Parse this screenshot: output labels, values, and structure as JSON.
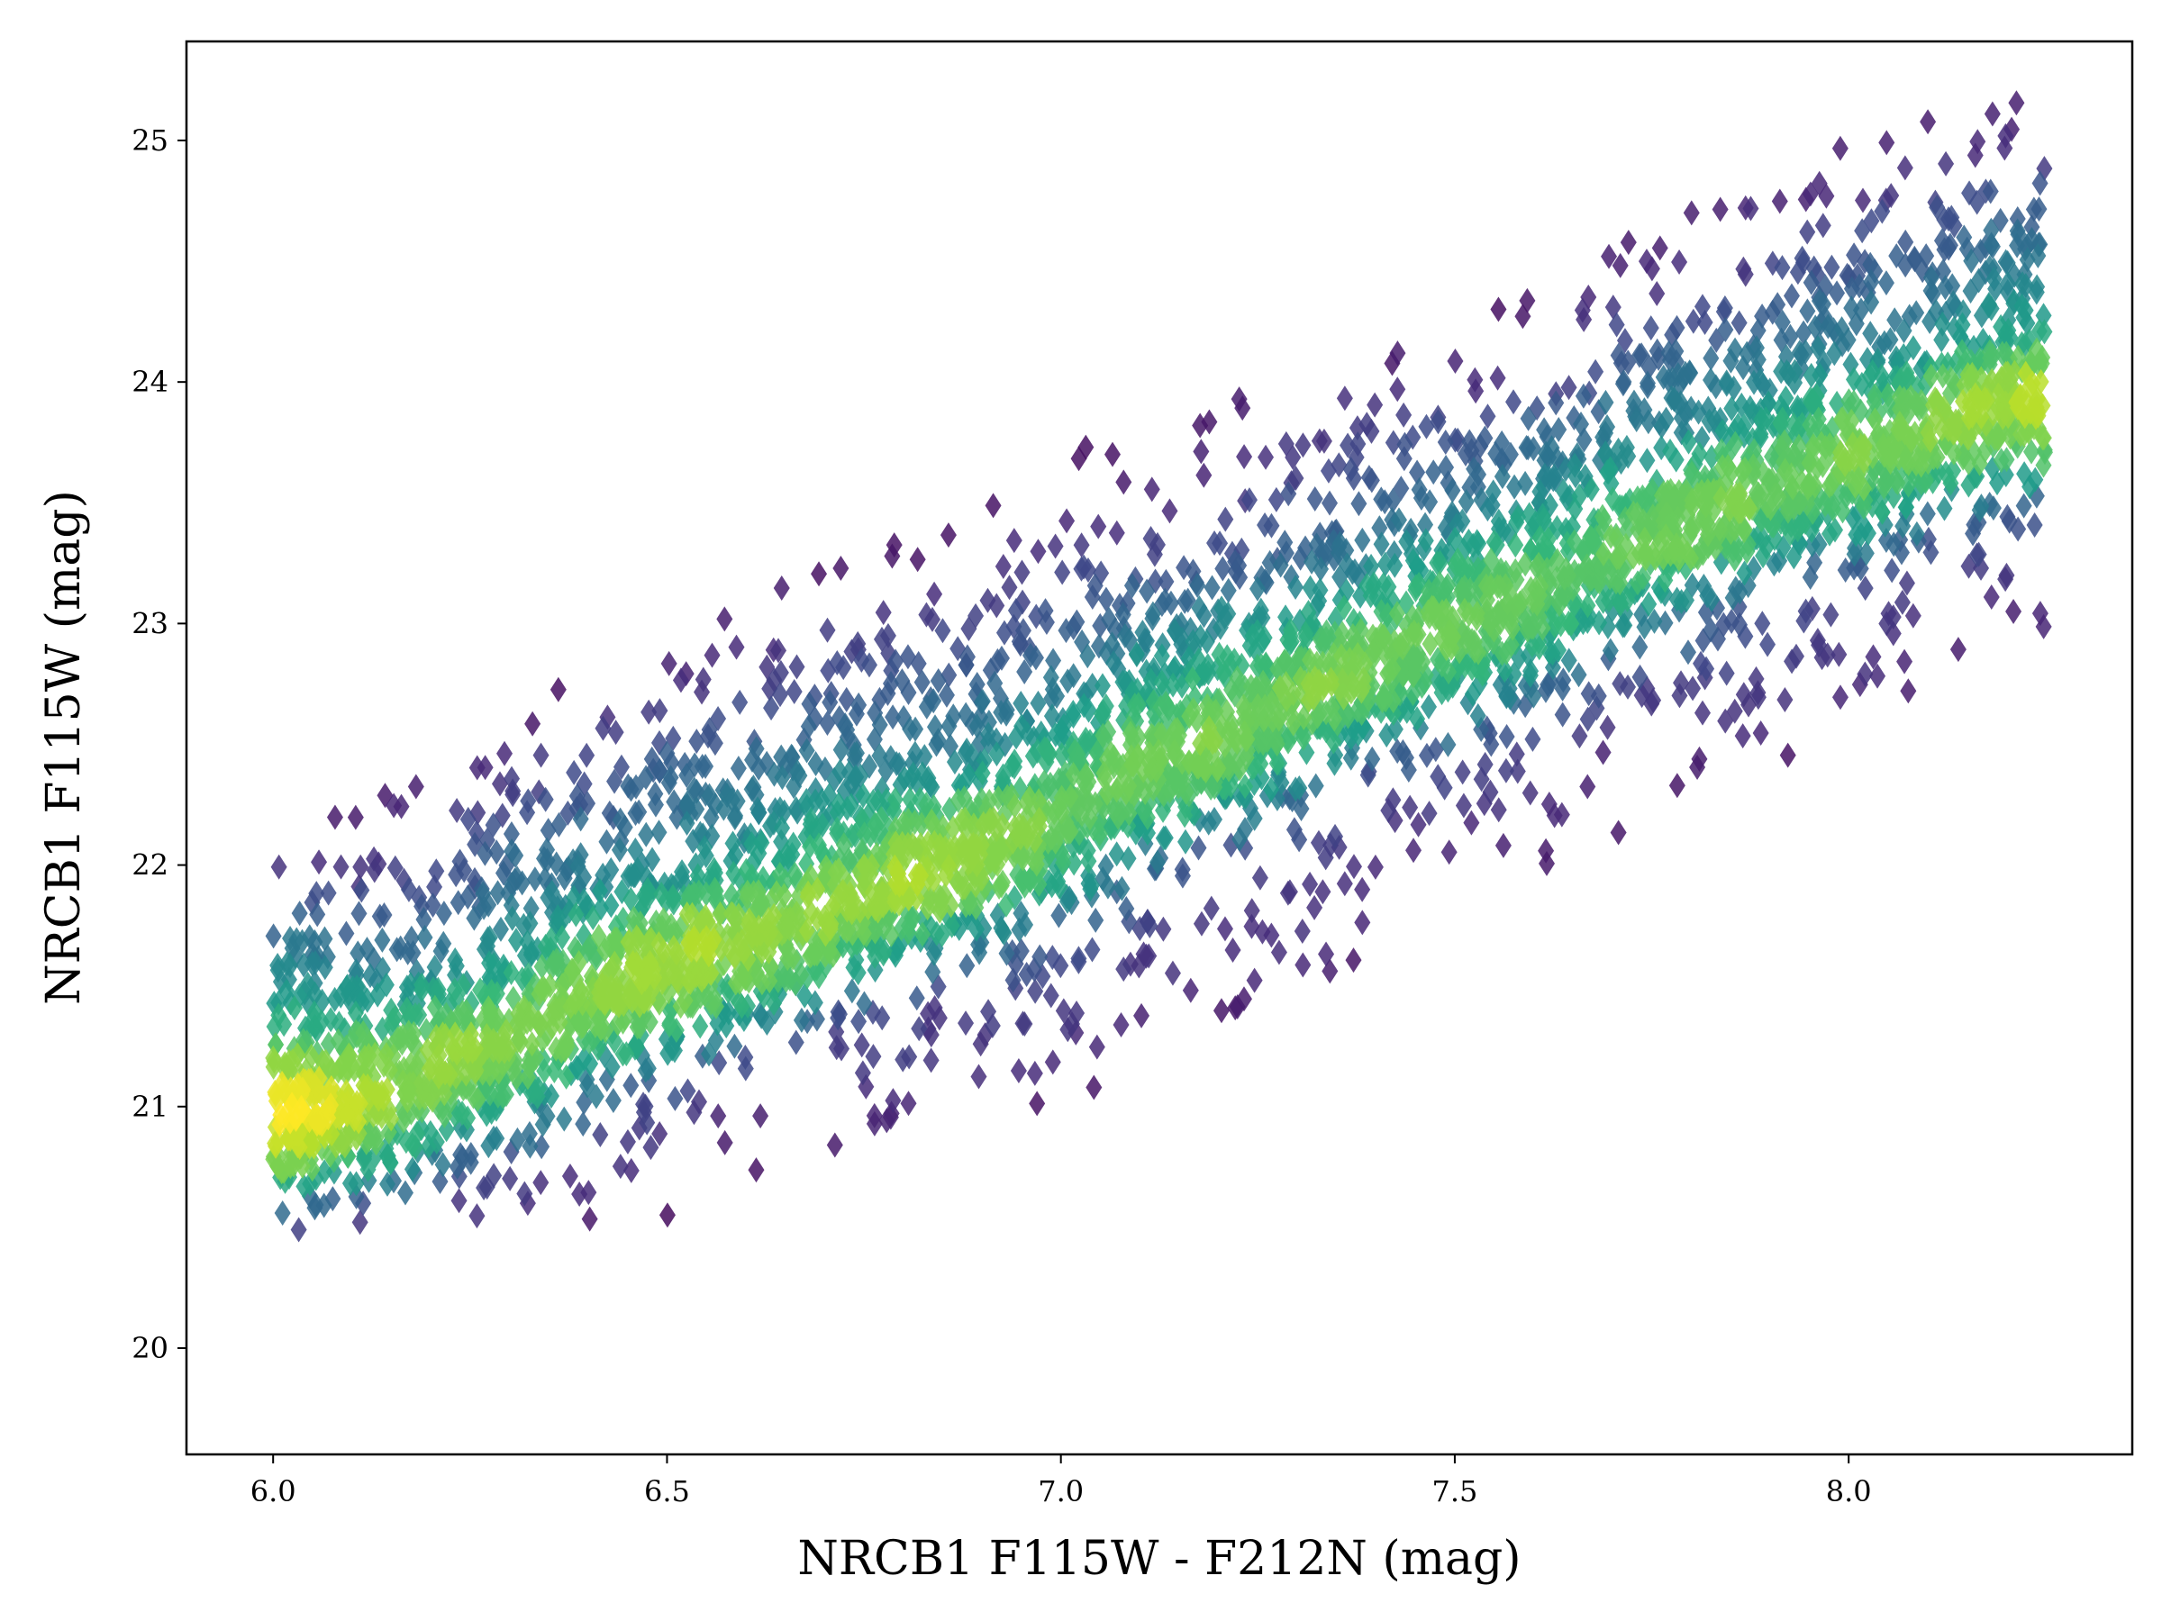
{
  "chart_data": {
    "type": "scatter",
    "marker": "diamond",
    "colormap": "viridis",
    "color_encoding": "point density",
    "title": "",
    "xlabel": "NRCB1 F115W - F212N (mag)",
    "ylabel": "NRCB1 F115W (mag)",
    "xlim": [
      5.89,
      8.36
    ],
    "ylim": [
      25.41,
      19.56
    ],
    "y_inverted": true,
    "grid": false,
    "xticks": [
      6.0,
      6.5,
      7.0,
      7.5,
      8.0
    ],
    "xtick_labels": [
      "6.0",
      "6.5",
      "7.0",
      "7.5",
      "8.0"
    ],
    "yticks": [
      20,
      21,
      22,
      23,
      24,
      25
    ],
    "ytick_labels": [
      "20",
      "21",
      "22",
      "23",
      "24",
      "25"
    ],
    "x_range_of_points": [
      6.0,
      8.25
    ],
    "ridge_line": [
      {
        "x": 6.0,
        "y": 20.9
      },
      {
        "x": 6.5,
        "y": 21.55
      },
      {
        "x": 7.0,
        "y": 22.15
      },
      {
        "x": 7.5,
        "y": 22.95
      },
      {
        "x": 8.0,
        "y": 23.65
      },
      {
        "x": 8.25,
        "y": 23.95
      }
    ],
    "scatter_band": {
      "upper_edge": [
        {
          "x": 6.0,
          "y": 20.5
        },
        {
          "x": 6.5,
          "y": 20.6
        },
        {
          "x": 7.0,
          "y": 21.05
        },
        {
          "x": 7.5,
          "y": 21.85
        },
        {
          "x": 8.0,
          "y": 22.6
        },
        {
          "x": 8.25,
          "y": 23.0
        }
      ],
      "lower_edge": [
        {
          "x": 6.0,
          "y": 22.1
        },
        {
          "x": 6.5,
          "y": 22.95
        },
        {
          "x": 7.0,
          "y": 23.65
        },
        {
          "x": 7.5,
          "y": 24.2
        },
        {
          "x": 8.0,
          "y": 24.95
        },
        {
          "x": 8.25,
          "y": 25.15
        }
      ]
    },
    "n_points": 5200,
    "colors": {
      "low_density": "#440154",
      "mid_density": "#31688e",
      "high_density": "#35b779",
      "peak_density": "#fde725"
    }
  }
}
